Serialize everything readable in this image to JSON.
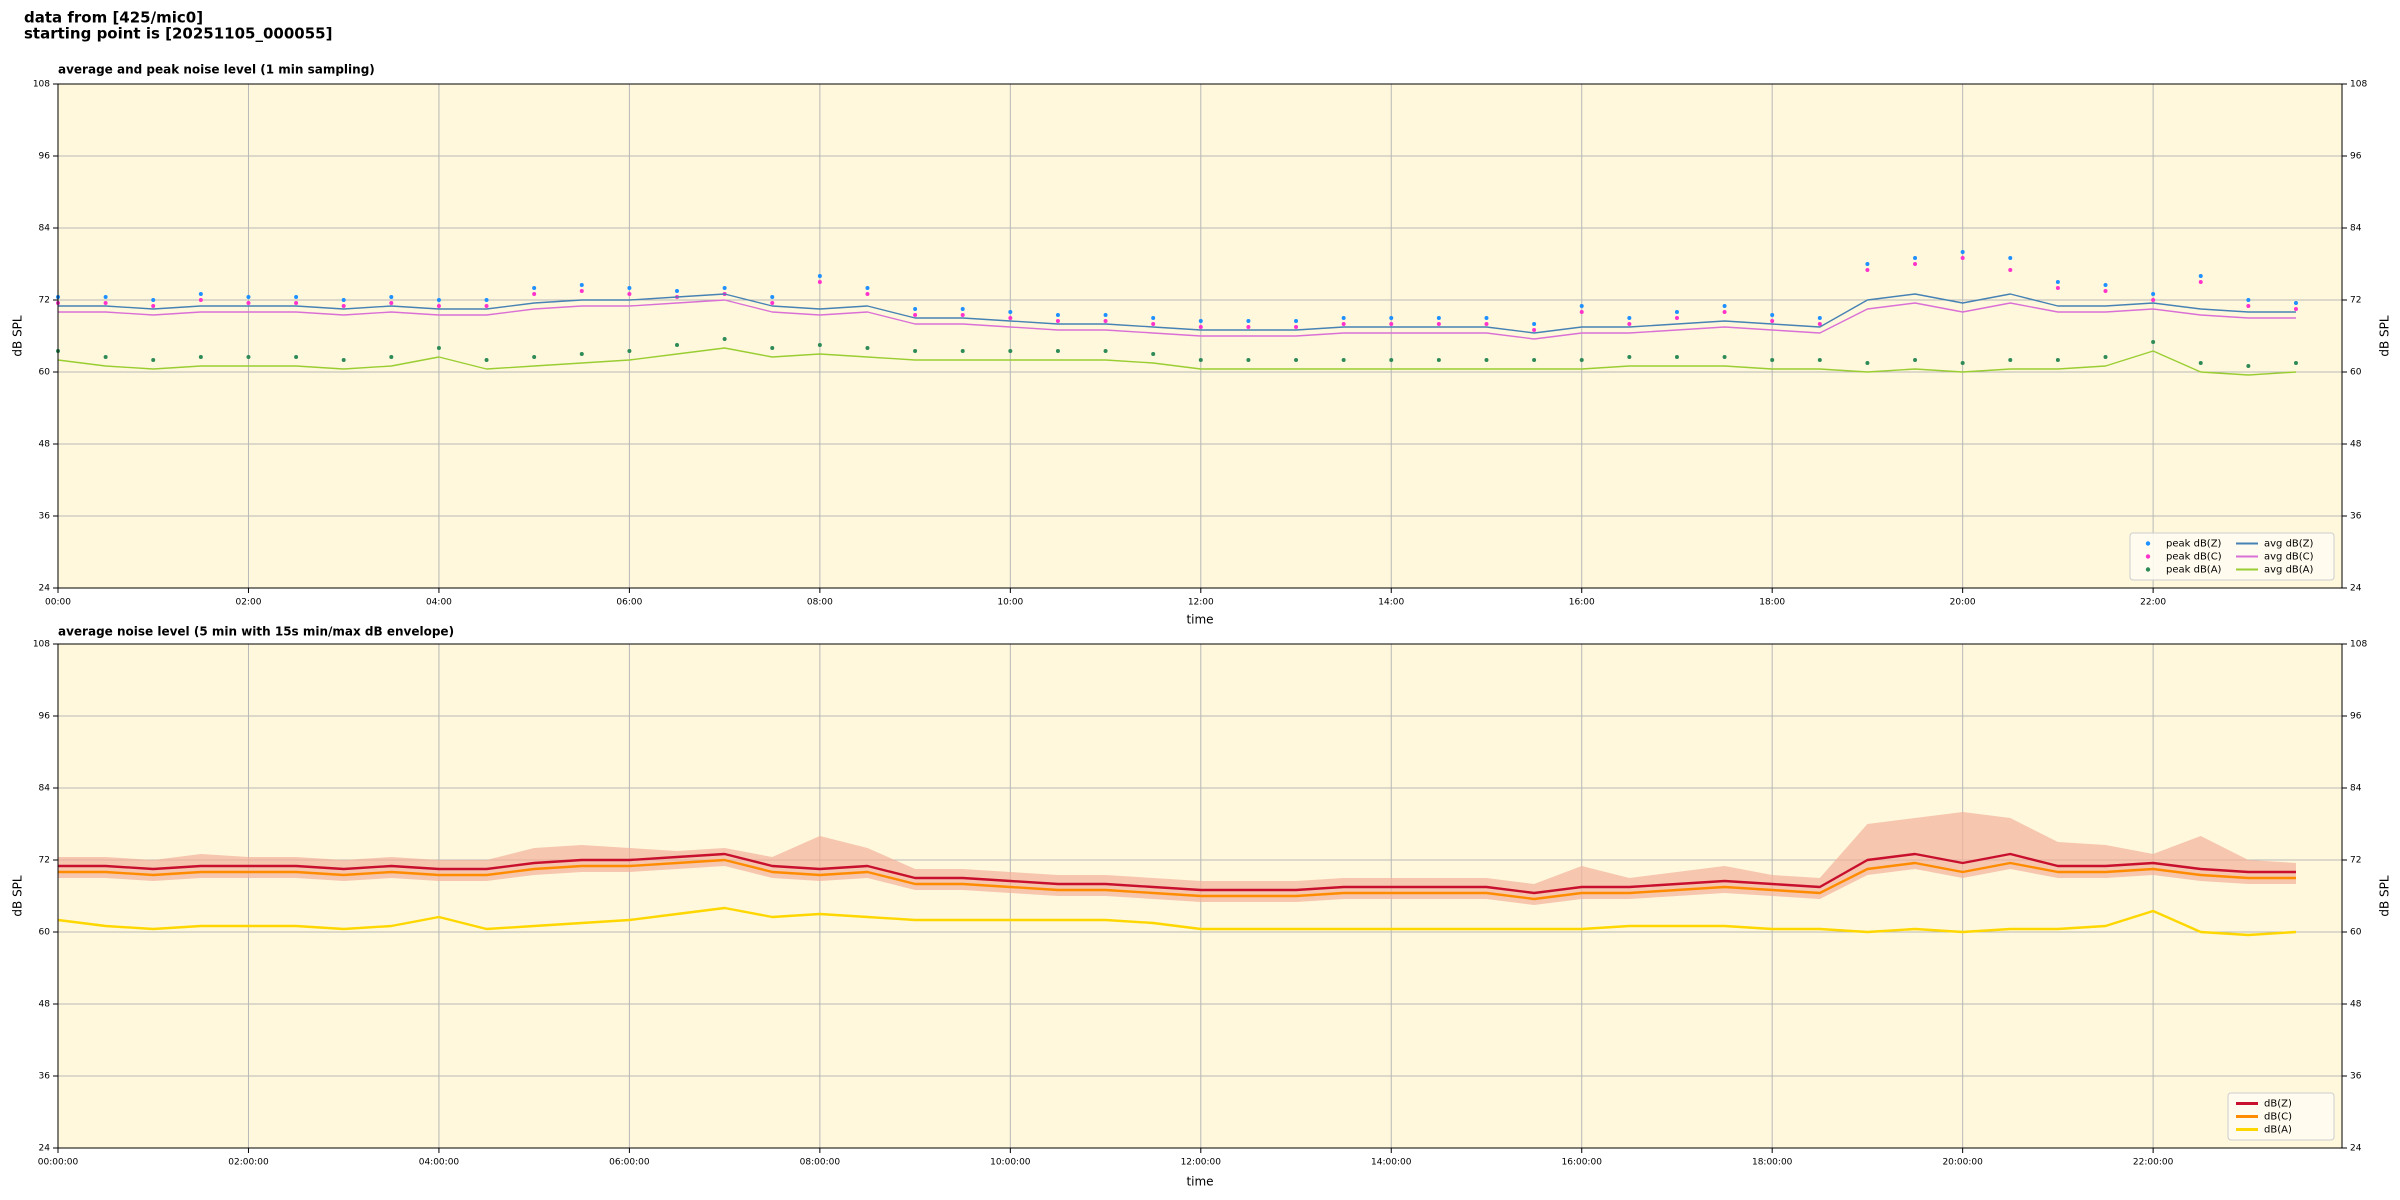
{
  "header": [
    "data from [425/mic0]",
    "starting point is [20251105_000055]"
  ],
  "chart_data": [
    {
      "type": "line",
      "title": "average and peak noise level (1 min sampling)",
      "xlabel": "time",
      "ylabel": "dB SPL",
      "background": "#fff8dc",
      "grid": true,
      "legend_loc": "lower right",
      "legend_ncol": 2,
      "xlim": [
        "00:00",
        "23:59"
      ],
      "xticks": [
        "00:00",
        "02:00",
        "04:00",
        "06:00",
        "08:00",
        "10:00",
        "12:00",
        "14:00",
        "16:00",
        "18:00",
        "20:00",
        "22:00"
      ],
      "ylim": [
        24,
        108
      ],
      "yticks": [
        24,
        36,
        48,
        60,
        72,
        84,
        96,
        108
      ],
      "x": [
        "00:00",
        "00:30",
        "01:00",
        "01:30",
        "02:00",
        "02:30",
        "03:00",
        "03:30",
        "04:00",
        "04:30",
        "05:00",
        "05:30",
        "06:00",
        "06:30",
        "07:00",
        "07:30",
        "08:00",
        "08:30",
        "09:00",
        "09:30",
        "10:00",
        "10:30",
        "11:00",
        "11:30",
        "12:00",
        "12:30",
        "13:00",
        "13:30",
        "14:00",
        "14:30",
        "15:00",
        "15:30",
        "16:00",
        "16:30",
        "17:00",
        "17:30",
        "18:00",
        "18:30",
        "19:00",
        "19:30",
        "20:00",
        "20:30",
        "21:00",
        "21:30",
        "22:00",
        "22:30",
        "23:00",
        "23:30"
      ],
      "series": [
        {
          "name": "peak dB(Z)",
          "color": "#1e90ff",
          "marker": true,
          "values": [
            72.5,
            72.5,
            72,
            73,
            72.5,
            72.5,
            72,
            72.5,
            72,
            72,
            74,
            74.5,
            74,
            73.5,
            74,
            72.5,
            76,
            74,
            70.5,
            70.5,
            70,
            69.5,
            69.5,
            69,
            68.5,
            68.5,
            68.5,
            69,
            69,
            69,
            69,
            68,
            71,
            69,
            70,
            71,
            69.5,
            69,
            78,
            79,
            80,
            79,
            75,
            74.5,
            73,
            76,
            72,
            71.5
          ]
        },
        {
          "name": "peak dB(C)",
          "color": "#ff33cc",
          "marker": true,
          "values": [
            71.5,
            71.5,
            71,
            72,
            71.5,
            71.5,
            71,
            71.5,
            71,
            71,
            73,
            73.5,
            73,
            72.5,
            73,
            71.5,
            75,
            73,
            69.5,
            69.5,
            69,
            68.5,
            68.5,
            68,
            67.5,
            67.5,
            67.5,
            68,
            68,
            68,
            68,
            67,
            70,
            68,
            69,
            70,
            68.5,
            68,
            77,
            78,
            79,
            77,
            74,
            73.5,
            72,
            75,
            71,
            70.5
          ]
        },
        {
          "name": "peak dB(A)",
          "color": "#2e8b57",
          "marker": true,
          "values": [
            63.5,
            62.5,
            62,
            62.5,
            62.5,
            62.5,
            62,
            62.5,
            64,
            62,
            62.5,
            63,
            63.5,
            64.5,
            65.5,
            64,
            64.5,
            64,
            63.5,
            63.5,
            63.5,
            63.5,
            63.5,
            63,
            62,
            62,
            62,
            62,
            62,
            62,
            62,
            62,
            62,
            62.5,
            62.5,
            62.5,
            62,
            62,
            61.5,
            62,
            61.5,
            62,
            62,
            62.5,
            65,
            61.5,
            61,
            61.5
          ]
        },
        {
          "name": "avg dB(Z)",
          "color": "#4682b4",
          "marker": false,
          "values": [
            71,
            71,
            70.5,
            71,
            71,
            71,
            70.5,
            71,
            70.5,
            70.5,
            71.5,
            72,
            72,
            72.5,
            73,
            71,
            70.5,
            71,
            69,
            69,
            68.5,
            68,
            68,
            67.5,
            67,
            67,
            67,
            67.5,
            67.5,
            67.5,
            67.5,
            66.5,
            67.5,
            67.5,
            68,
            68.5,
            68,
            67.5,
            72,
            73,
            71.5,
            73,
            71,
            71,
            71.5,
            70.5,
            70,
            70
          ]
        },
        {
          "name": "avg dB(C)",
          "color": "#da70d6",
          "marker": false,
          "values": [
            70,
            70,
            69.5,
            70,
            70,
            70,
            69.5,
            70,
            69.5,
            69.5,
            70.5,
            71,
            71,
            71.5,
            72,
            70,
            69.5,
            70,
            68,
            68,
            67.5,
            67,
            67,
            66.5,
            66,
            66,
            66,
            66.5,
            66.5,
            66.5,
            66.5,
            65.5,
            66.5,
            66.5,
            67,
            67.5,
            67,
            66.5,
            70.5,
            71.5,
            70,
            71.5,
            70,
            70,
            70.5,
            69.5,
            69,
            69
          ]
        },
        {
          "name": "avg dB(A)",
          "color": "#9acd32",
          "marker": false,
          "values": [
            62,
            61,
            60.5,
            61,
            61,
            61,
            60.5,
            61,
            62.5,
            60.5,
            61,
            61.5,
            62,
            63,
            64,
            62.5,
            63,
            62.5,
            62,
            62,
            62,
            62,
            62,
            61.5,
            60.5,
            60.5,
            60.5,
            60.5,
            60.5,
            60.5,
            60.5,
            60.5,
            60.5,
            61,
            61,
            61,
            60.5,
            60.5,
            60,
            60.5,
            60,
            60.5,
            60.5,
            61,
            63.5,
            60,
            59.5,
            60
          ]
        }
      ]
    },
    {
      "type": "line",
      "title": "average noise level (5 min with 15s min/max dB envelope)",
      "xlabel": "time",
      "ylabel": "dB SPL",
      "background": "#fff8dc",
      "grid": true,
      "legend_loc": "lower right",
      "legend_ncol": 1,
      "xlim": [
        "00:00:00",
        "23:59:00"
      ],
      "xticks": [
        "00:00:00",
        "02:00:00",
        "04:00:00",
        "06:00:00",
        "08:00:00",
        "10:00:00",
        "12:00:00",
        "14:00:00",
        "16:00:00",
        "18:00:00",
        "20:00:00",
        "22:00:00"
      ],
      "ylim": [
        24,
        108
      ],
      "yticks": [
        24,
        36,
        48,
        60,
        72,
        84,
        96,
        108
      ],
      "x": [
        "00:00:00",
        "00:30:00",
        "01:00:00",
        "01:30:00",
        "02:00:00",
        "02:30:00",
        "03:00:00",
        "03:30:00",
        "04:00:00",
        "04:30:00",
        "05:00:00",
        "05:30:00",
        "06:00:00",
        "06:30:00",
        "07:00:00",
        "07:30:00",
        "08:00:00",
        "08:30:00",
        "09:00:00",
        "09:30:00",
        "10:00:00",
        "10:30:00",
        "11:00:00",
        "11:30:00",
        "12:00:00",
        "12:30:00",
        "13:00:00",
        "13:30:00",
        "14:00:00",
        "14:30:00",
        "15:00:00",
        "15:30:00",
        "16:00:00",
        "16:30:00",
        "17:00:00",
        "17:30:00",
        "18:00:00",
        "18:30:00",
        "19:00:00",
        "19:30:00",
        "20:00:00",
        "20:30:00",
        "21:00:00",
        "21:30:00",
        "22:00:00",
        "22:30:00",
        "23:00:00",
        "23:30:00"
      ],
      "envelope": {
        "color": "#f4b09a",
        "upper": [
          72.5,
          72.5,
          72,
          73,
          72.5,
          72.5,
          72,
          72.5,
          72,
          72,
          74,
          74.5,
          74,
          73.5,
          74,
          72.5,
          76,
          74,
          70.5,
          70.5,
          70,
          69.5,
          69.5,
          69,
          68.5,
          68.5,
          68.5,
          69,
          69,
          69,
          69,
          68,
          71,
          69,
          70,
          71,
          69.5,
          69,
          78,
          79,
          80,
          79,
          75,
          74.5,
          73,
          76,
          72,
          71.5
        ],
        "lower": [
          69,
          69,
          68.5,
          69,
          69,
          69,
          68.5,
          69,
          68.5,
          68.5,
          69.5,
          70,
          70,
          70.5,
          71,
          69,
          68.5,
          69,
          67,
          67,
          66.5,
          66,
          66,
          65.5,
          65,
          65,
          65,
          65.5,
          65.5,
          65.5,
          65.5,
          64.5,
          65.5,
          65.5,
          66,
          66.5,
          66,
          65.5,
          69.5,
          70.5,
          69,
          70.5,
          69,
          69,
          69.5,
          68.5,
          68,
          68
        ]
      },
      "series": [
        {
          "name": "dB(Z)",
          "color": "#c8102e",
          "marker": false,
          "values": [
            71,
            71,
            70.5,
            71,
            71,
            71,
            70.5,
            71,
            70.5,
            70.5,
            71.5,
            72,
            72,
            72.5,
            73,
            71,
            70.5,
            71,
            69,
            69,
            68.5,
            68,
            68,
            67.5,
            67,
            67,
            67,
            67.5,
            67.5,
            67.5,
            67.5,
            66.5,
            67.5,
            67.5,
            68,
            68.5,
            68,
            67.5,
            72,
            73,
            71.5,
            73,
            71,
            71,
            71.5,
            70.5,
            70,
            70
          ]
        },
        {
          "name": "dB(C)",
          "color": "#ff8c00",
          "marker": false,
          "values": [
            70,
            70,
            69.5,
            70,
            70,
            70,
            69.5,
            70,
            69.5,
            69.5,
            70.5,
            71,
            71,
            71.5,
            72,
            70,
            69.5,
            70,
            68,
            68,
            67.5,
            67,
            67,
            66.5,
            66,
            66,
            66,
            66.5,
            66.5,
            66.5,
            66.5,
            65.5,
            66.5,
            66.5,
            67,
            67.5,
            67,
            66.5,
            70.5,
            71.5,
            70,
            71.5,
            70,
            70,
            70.5,
            69.5,
            69,
            69
          ]
        },
        {
          "name": "dB(A)",
          "color": "#ffd700",
          "marker": false,
          "values": [
            62,
            61,
            60.5,
            61,
            61,
            61,
            60.5,
            61,
            62.5,
            60.5,
            61,
            61.5,
            62,
            63,
            64,
            62.5,
            63,
            62.5,
            62,
            62,
            62,
            62,
            62,
            61.5,
            60.5,
            60.5,
            60.5,
            60.5,
            60.5,
            60.5,
            60.5,
            60.5,
            60.5,
            61,
            61,
            61,
            60.5,
            60.5,
            60,
            60.5,
            60,
            60.5,
            60.5,
            61,
            63.5,
            60,
            59.5,
            60
          ]
        }
      ]
    }
  ]
}
